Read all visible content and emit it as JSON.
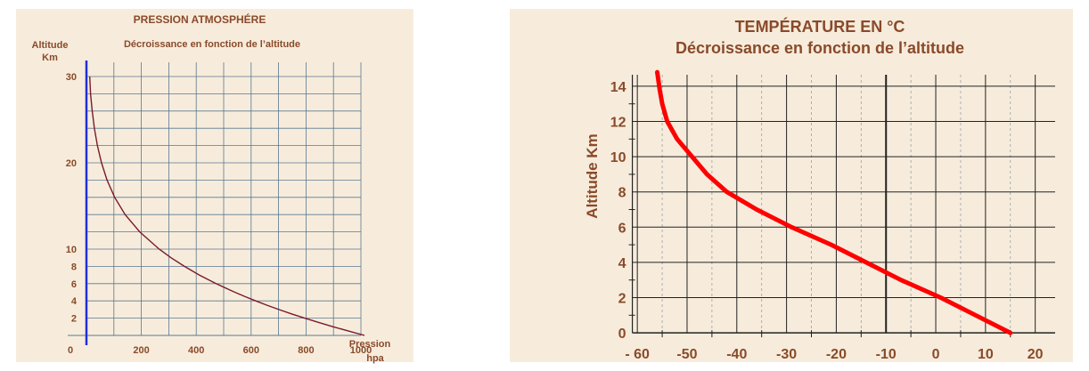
{
  "chart_data": [
    {
      "type": "line",
      "title": "PRESSION ATMOSPHÉRE",
      "subtitle": "Décroissance en fonction de l’altitude",
      "ylabel": [
        "Altitude",
        "Km"
      ],
      "xlabel": [
        "Pression",
        "hpa"
      ],
      "origin_label": "0",
      "xlim": [
        0,
        1000
      ],
      "ylim": [
        0,
        30
      ],
      "xticks": [
        200,
        400,
        600,
        800,
        1000
      ],
      "xtick_labels": [
        "200",
        "400",
        "600",
        "800",
        "1000"
      ],
      "yticks": [
        2,
        4,
        6,
        8,
        10,
        20,
        30
      ],
      "ytick_labels": [
        "2",
        "4",
        "6",
        "8",
        "10",
        "20",
        "30"
      ],
      "grid": true,
      "colors": {
        "curve": "#7a1a2a",
        "y_axis": "#1f2fd6",
        "grid": "#5a7890",
        "text": "#8a4a2a"
      },
      "series": [
        {
          "x": [
            1013,
            955,
            899,
            846,
            795,
            747,
            701,
            658,
            617,
            578,
            541,
            472,
            411,
            357,
            308,
            265,
            194,
            141,
            103,
            75,
            55,
            40,
            29,
            21,
            15,
            12
          ],
          "y": [
            0,
            0.5,
            1,
            1.5,
            2,
            2.5,
            3,
            3.5,
            4,
            4.5,
            5,
            6,
            7,
            8,
            9,
            10,
            12,
            14,
            16,
            18,
            20,
            22,
            24,
            26,
            28,
            30
          ]
        }
      ]
    },
    {
      "type": "line",
      "title": "TEMPÉRATURE EN °C",
      "subtitle": "Décroissance en fonction de l’altitude",
      "ylabel": "Altitude Km",
      "xlabel": "",
      "xlim": [
        -62,
        24
      ],
      "ylim": [
        -0.6,
        14.5
      ],
      "xticks": [
        -60,
        -50,
        -40,
        -30,
        -20,
        -10,
        0,
        10,
        20
      ],
      "xtick_labels": [
        "- 60",
        "-50",
        "-40",
        "-30",
        "-20",
        "-10",
        "0",
        "10",
        "20"
      ],
      "yticks": [
        0,
        2,
        4,
        6,
        8,
        10,
        12,
        14
      ],
      "ytick_labels": [
        "0",
        "2",
        "4",
        "6",
        "8",
        "10",
        "12",
        "14"
      ],
      "grid": true,
      "colors": {
        "curve": "#ff0000",
        "grid": "#222222",
        "text": "#8a4a2a"
      },
      "series": [
        {
          "x": [
            15,
            8,
            1,
            -7,
            -14,
            -21,
            -29,
            -36,
            -42,
            -46,
            -49,
            -52,
            -54,
            -55,
            -55.5,
            -56
          ],
          "y": [
            0,
            1,
            2,
            3,
            4,
            5,
            6,
            7,
            8,
            9,
            10,
            11,
            12,
            13,
            13.8,
            14.8
          ]
        }
      ]
    }
  ]
}
